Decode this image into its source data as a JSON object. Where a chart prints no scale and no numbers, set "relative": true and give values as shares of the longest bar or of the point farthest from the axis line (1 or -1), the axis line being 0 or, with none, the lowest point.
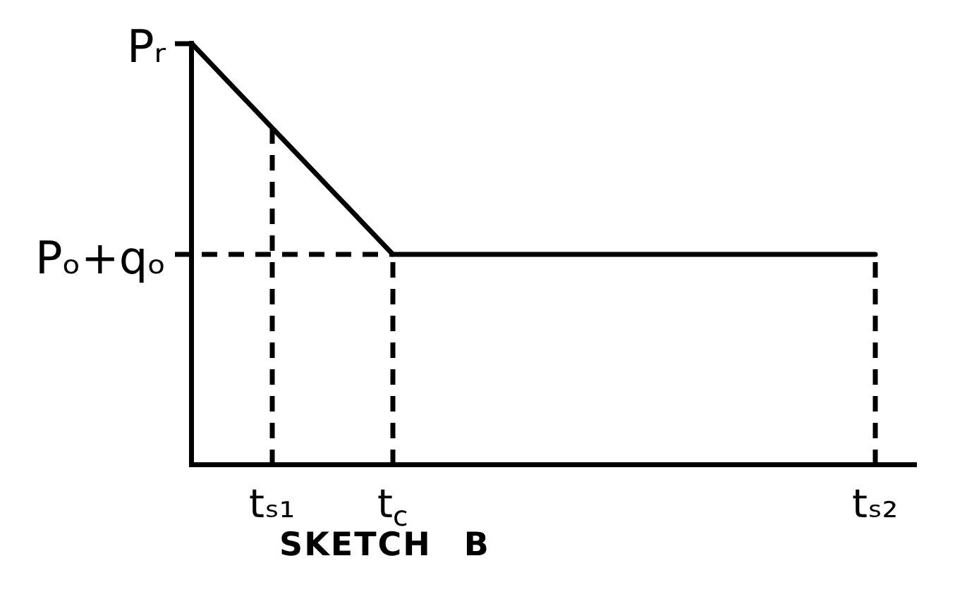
{
  "chart_data": {
    "type": "line",
    "title": "SKETCH B",
    "relative": true,
    "categories": [
      null,
      null,
      null,
      null,
      "tₛ₁",
      null,
      null,
      null,
      null,
      null,
      "t$_{c}$",
      null,
      null,
      null,
      null,
      null,
      null,
      null,
      null,
      null,
      null,
      null,
      null,
      null,
      null,
      null,
      null,
      null,
      null,
      null,
      null,
      null,
      null,
      null,
      "tₛ₂",
      null,
      null
    ],
    "series": [
      {
        "color": "#000000",
        "values": [
          1,
          0.95,
          0.9,
          0.85,
          0.8,
          0.75,
          0.7,
          0.65,
          0.6,
          0.55,
          0.5,
          0.5,
          0.5,
          0.5,
          0.5,
          0.5,
          0.5,
          0.5,
          0.5,
          0.5,
          0.5,
          0.5,
          0.5,
          0.5,
          0.5,
          0.5,
          0.5,
          0.5,
          0.5,
          0.5,
          0.5,
          0.5,
          0.5,
          0.5,
          0.5,
          null,
          null
        ]
      }
    ],
    "ref_lines": [
      {
        "axis": "y",
        "value": 1,
        "label": "Pᵣ",
        "color": "#000000",
        "line_style": "solid"
      },
      {
        "axis": "y",
        "value": 0.5,
        "label": "Pₒ+qₒ",
        "color": "#000000",
        "line_style": "dashed"
      },
      {
        "axis": "x",
        "value": "tₛ₁",
        "color": "#000000",
        "line_style": "dashed"
      },
      {
        "axis": "x",
        "value": "t$_{c}$",
        "color": "#000000",
        "line_style": "dashed"
      },
      {
        "axis": "x",
        "value": "tₛ₂",
        "color": "#000000",
        "line_style": "dashed"
      }
    ],
    "grid": false,
    "legend": false,
    "marker": "none",
    "line_style": "solid"
  }
}
